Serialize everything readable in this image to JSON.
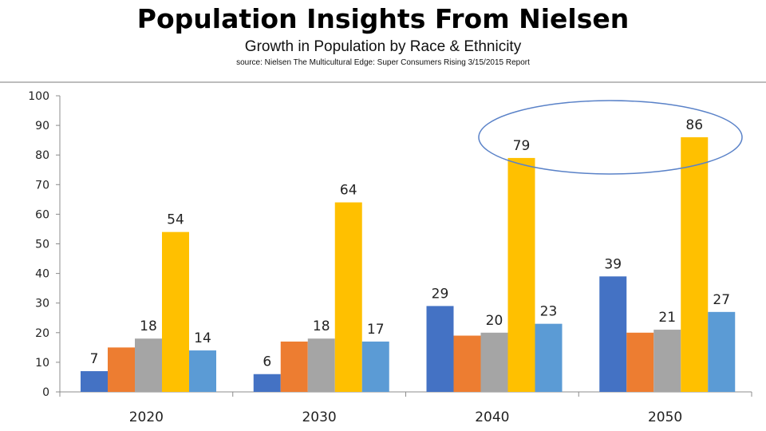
{
  "header": {
    "title": "Population Insights From Nielsen",
    "subtitle": "Growth in Population by Race & Ethnicity",
    "source": "source:  Nielsen The Multicultural Edge: Super Consumers Rising 3/15/2015 Report"
  },
  "chart_data": {
    "type": "bar",
    "title": "",
    "xlabel": "",
    "ylabel": "",
    "ylim": [
      0,
      100
    ],
    "yticks": [
      0,
      10,
      20,
      30,
      40,
      50,
      60,
      70,
      80,
      90,
      100
    ],
    "categories": [
      "2020",
      "2030",
      "2040",
      "2050"
    ],
    "series": [
      {
        "color": "#4472c4",
        "values": [
          7,
          6,
          29,
          39
        ],
        "labels": [
          "7",
          "6",
          "29",
          "39"
        ]
      },
      {
        "color": "#ed7d31",
        "values": [
          15,
          17,
          19,
          20
        ],
        "labels": [
          "",
          "",
          "",
          ""
        ]
      },
      {
        "color": "#a5a5a5",
        "values": [
          18,
          18,
          20,
          21
        ],
        "labels": [
          "18",
          "18",
          "20",
          "21"
        ]
      },
      {
        "color": "#ffc000",
        "values": [
          54,
          64,
          79,
          86
        ],
        "labels": [
          "54",
          "64",
          "79",
          "86"
        ]
      },
      {
        "color": "#5b9bd5",
        "values": [
          14,
          17,
          23,
          27
        ],
        "labels": [
          "14",
          "17",
          "23",
          "27"
        ]
      }
    ],
    "grid": false,
    "legend": "none",
    "annotation": {
      "shape": "ellipse",
      "color": "#5a82c8",
      "highlights": [
        "79",
        "86"
      ]
    }
  }
}
